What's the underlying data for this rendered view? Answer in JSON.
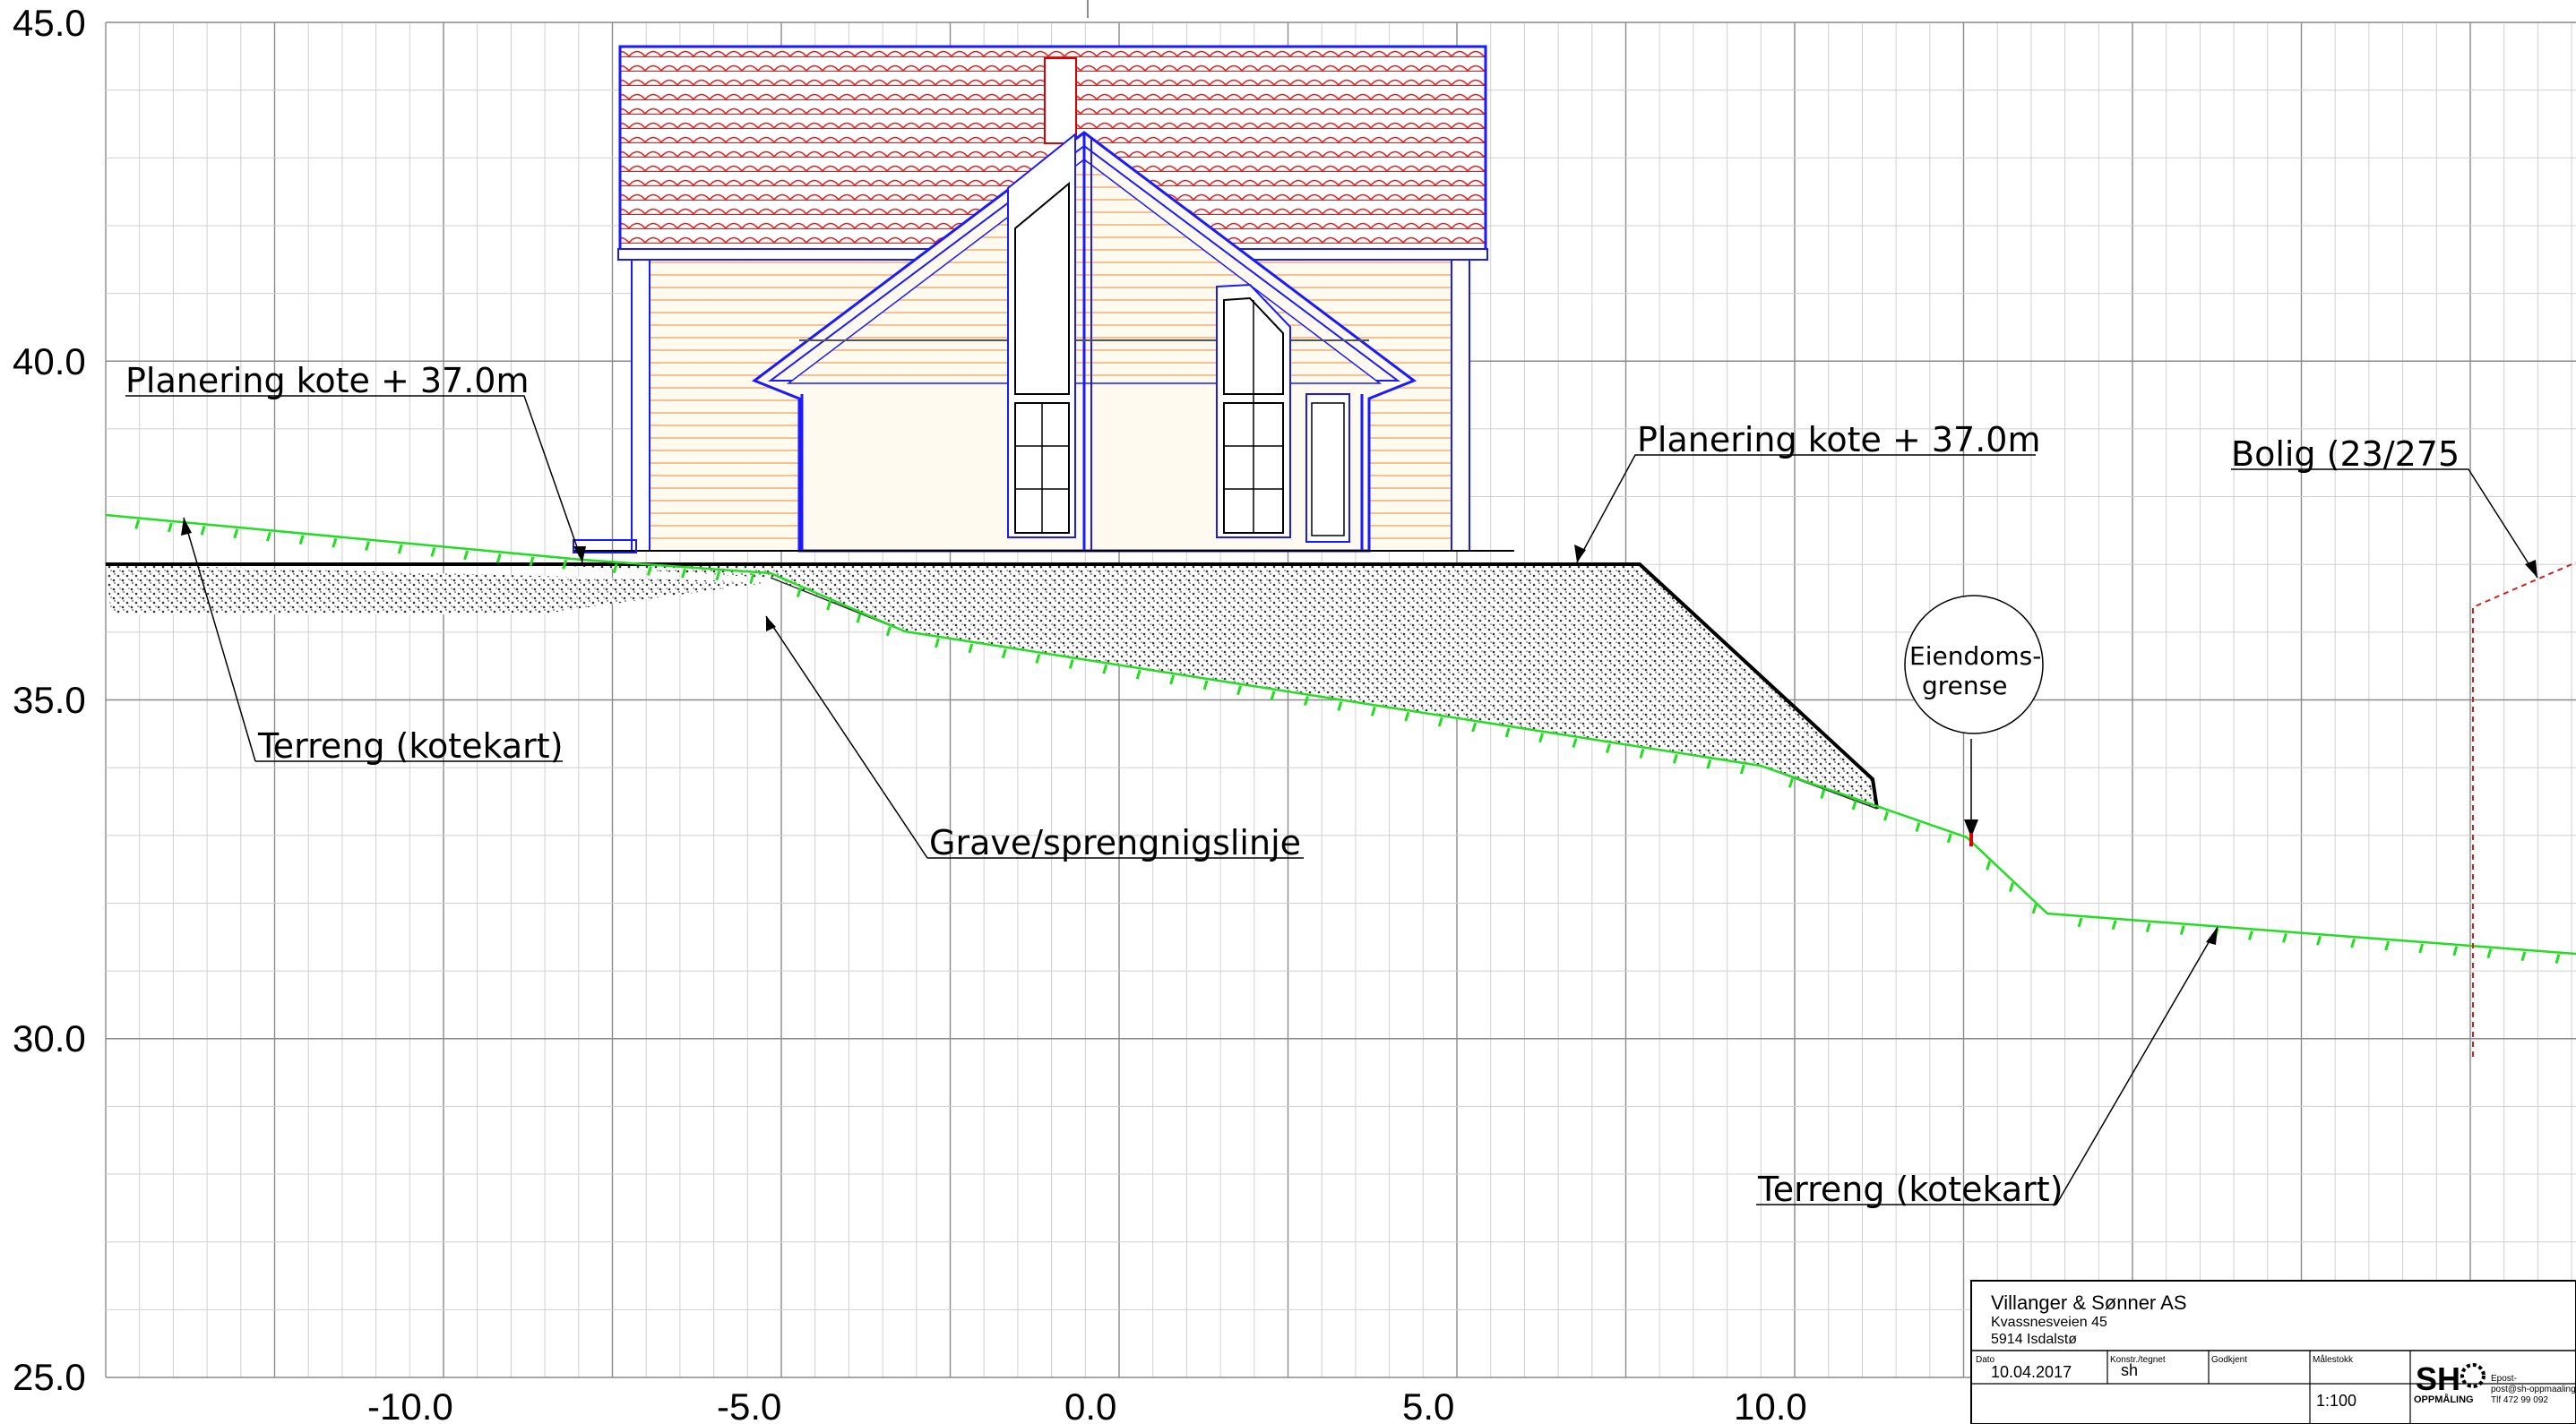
{
  "axes": {
    "y_ticks": [
      "45.0",
      "40.0",
      "35.0",
      "30.0",
      "25.0"
    ],
    "x_ticks": [
      "-10.0",
      "-5.0",
      "0.0",
      "5.0",
      "10.0"
    ]
  },
  "annotations": {
    "planering_left": "Planering kote + 37.0m",
    "planering_right": "Planering kote + 37.0m",
    "bolig": "Bolig (23/275",
    "terreng_left": "Terreng (kotekart)",
    "terreng_right": "Terreng (kotekart)",
    "grave": "Grave/sprengnigslinje",
    "eiendom_line1": "Eiendoms-",
    "eiendom_line2": "grense"
  },
  "title_block": {
    "company": "Villanger & Sønner AS",
    "address1": "Kvassnesveien 45",
    "address2": "5914 Isdalstø",
    "date_label": "Dato",
    "date_value": "10.04.2017",
    "drawn_label": "Konstr./tegnet",
    "drawn_value": "sh",
    "approved_label": "Godkjent",
    "scale_label": "Målestokk",
    "scale_value": "1:100",
    "logo_text": "SH",
    "logo_sub": "OPPMÅLING",
    "contact1": "Epost-",
    "contact2": "post@sh-oppmaaling",
    "contact3": "Tlf 472 99 092"
  },
  "colors": {
    "grid": "#c8c8c8",
    "grid_major": "#8a8a8a",
    "roof": "#e02020",
    "outline": "#1a1aff",
    "terrain": "#22dd22",
    "wall_lines": "#f0b070",
    "wall_fill": "#fff8ec",
    "property_line": "#cc2222"
  }
}
